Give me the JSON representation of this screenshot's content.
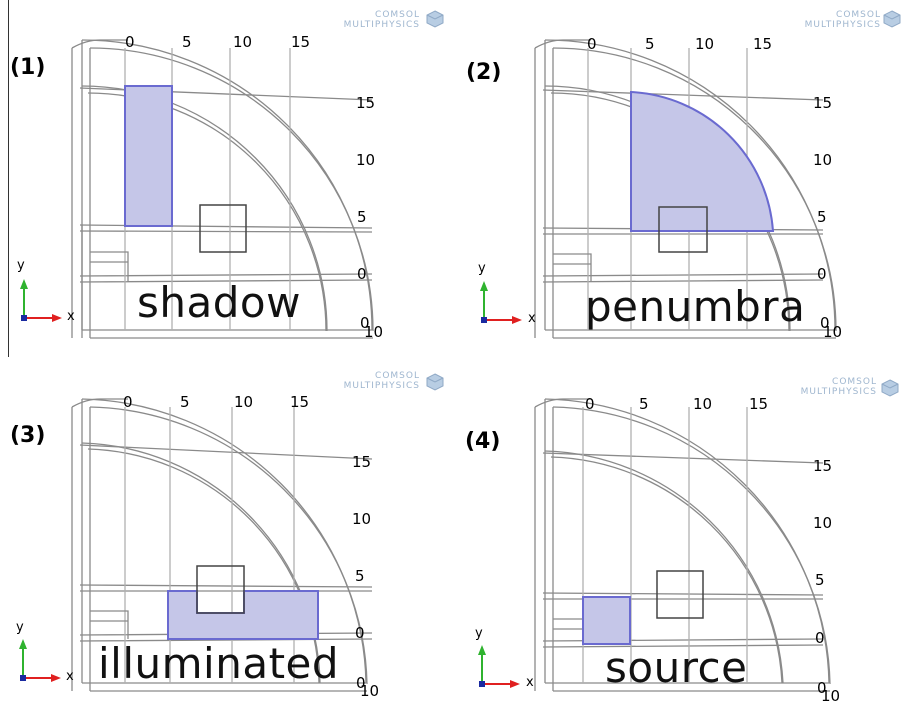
{
  "panels": [
    {
      "id": "1",
      "label": "(1)",
      "caption": "shadow"
    },
    {
      "id": "2",
      "label": "(2)",
      "caption": "penumbra"
    },
    {
      "id": "3",
      "label": "(3)",
      "caption": "illuminated"
    },
    {
      "id": "4",
      "label": "(4)",
      "caption": "source"
    }
  ],
  "ticks": {
    "top": [
      "0",
      "5",
      "10",
      "15"
    ],
    "right": [
      "15",
      "10",
      "5",
      "0",
      "0",
      "10"
    ]
  },
  "triad": {
    "y": "y",
    "x": "x"
  },
  "logo": {
    "line1": "COMSOL",
    "line2": "MULTIPHYSICS"
  },
  "colors": {
    "highlight_fill": "#c5c6e8",
    "highlight_stroke": "#6a6ad0",
    "frame": "#7a7a7a",
    "logo": "#9fb6cf"
  }
}
